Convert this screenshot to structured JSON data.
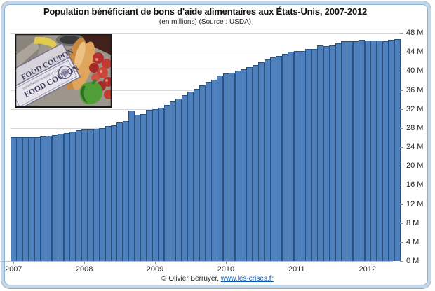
{
  "title": "Population bénéficiant de bons d'aide alimentaires aux États-Unis, 2007-2012",
  "subtitle": "(en millions) (Source : USDA)",
  "footer": {
    "copyright": "© Olivier Berruyer,",
    "link": "www.les-crises.fr"
  },
  "photo": {
    "description": "food coupons with bread and vegetables",
    "coupon_text_1": "FOOD COUPON",
    "coupon_text_2": "FOOD COUPON",
    "coupon_small_text": "DEPARTMENT OF AGRICULTURE"
  },
  "colors": {
    "bar_fill": "#4d80bd",
    "bar_border": "#2b517e",
    "gridline": "#d8d8d8",
    "axis_line": "#bdbdbd",
    "link_blue": "#0b5ab8",
    "frame_band": "#c2d6ec",
    "frame_inner_line": "#8fb2d6"
  },
  "chart_data": {
    "type": "bar",
    "title": "Population bénéficiant de bons d'aide alimentaires aux États-Unis, 2007-2012",
    "subtitle": "(en millions) (Source : USDA)",
    "unit": "millions of persons",
    "x_start": "2007-01",
    "x_end": "2012-06",
    "x_interval": "month",
    "x_tick_labels": [
      "2007",
      "2008",
      "2009",
      "2010",
      "2011",
      "2012"
    ],
    "y_axis_side": "right",
    "y_tick_step": 4,
    "ylim": [
      0,
      48
    ],
    "y_tick_labels": [
      "0 M",
      "4 M",
      "8 M",
      "12 M",
      "16 M",
      "20 M",
      "24 M",
      "28 M",
      "32 M",
      "36 M",
      "40 M",
      "44 M",
      "48 M"
    ],
    "grid": "horizontal",
    "legend": "none",
    "values": [
      26.1,
      26.1,
      26.1,
      26.1,
      26.1,
      26.2,
      26.3,
      26.5,
      26.8,
      26.9,
      27.2,
      27.5,
      27.7,
      27.7,
      27.9,
      28.0,
      28.4,
      28.5,
      29.1,
      29.5,
      31.6,
      30.8,
      30.9,
      31.8,
      32.0,
      32.3,
      32.9,
      33.5,
      34.2,
      34.9,
      35.6,
      36.2,
      36.9,
      37.7,
      38.2,
      39.0,
      39.4,
      39.6,
      40.1,
      40.4,
      40.8,
      41.3,
      41.8,
      42.4,
      42.9,
      43.2,
      43.6,
      44.1,
      44.2,
      44.2,
      44.6,
      44.6,
      45.4,
      45.2,
      45.3,
      45.8,
      46.3,
      46.2,
      46.3,
      46.5,
      46.4,
      46.4,
      46.4,
      46.2,
      46.5,
      46.7
    ]
  }
}
